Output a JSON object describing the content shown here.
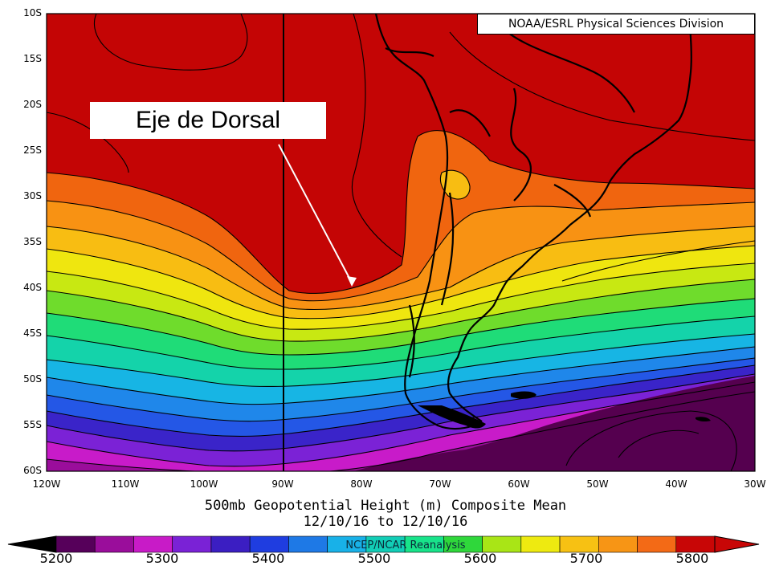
{
  "credit": "NOAA/ESRL Physical Sciences Division",
  "callout": "Eje de Dorsal",
  "caption": {
    "line1": "500mb Geopotential Height (m) Composite Mean",
    "line2": "12/10/16  to 12/10/16"
  },
  "colorbar": {
    "overlay_text": "NCEP/NCAR Reanalysis",
    "labels": [
      "5200",
      "5300",
      "5400",
      "5500",
      "5600",
      "5700",
      "5800"
    ],
    "colors": [
      "#56005a",
      "#9a0d9b",
      "#c81bc7",
      "#7a22d6",
      "#3b1ec2",
      "#1f3de0",
      "#1e79e6",
      "#18b1e8",
      "#12cdb6",
      "#18e38a",
      "#2fd73b",
      "#a9e516",
      "#eeea10",
      "#f7c113",
      "#f79515",
      "#f36a16",
      "#c80606"
    ]
  },
  "map": {
    "lat_labels": [
      "10S",
      "15S",
      "20S",
      "25S",
      "30S",
      "35S",
      "40S",
      "45S",
      "50S",
      "55S",
      "60S"
    ],
    "lon_labels": [
      "120W",
      "110W",
      "100W",
      "90W",
      "80W",
      "70W",
      "60W",
      "50W",
      "40W",
      "30W"
    ],
    "field_colors": {
      "c5800": "#c40505",
      "c5780": "#f0650f",
      "c5760": "#f89213",
      "c5740": "#f8bd12",
      "c5720": "#efe60f",
      "c5700": "#c8e812",
      "c5680": "#6fdc2c",
      "c5660": "#1fdc78",
      "c5640": "#14d3aa",
      "c5620": "#17b5e4",
      "c5600": "#1f87ea",
      "c5580": "#2457e6",
      "c5560": "#3a24c9",
      "c5540": "#7b22d6",
      "c5520": "#c81bc9",
      "c5500": "#9a0d9b",
      "c5480": "#55004f"
    }
  }
}
